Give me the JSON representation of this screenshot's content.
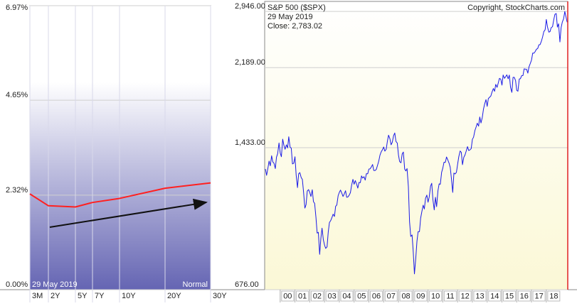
{
  "chart_data": [
    {
      "type": "line",
      "date_label": "29  May 2019",
      "annotation": "Normal",
      "categories": [
        "3M",
        "2Y",
        "5Y",
        "7Y",
        "10Y",
        "20Y",
        "30Y"
      ],
      "values": [
        2.35,
        2.06,
        2.03,
        2.14,
        2.24,
        2.49,
        2.62
      ],
      "color": "#ff2020",
      "ylim": [
        0,
        6.97
      ],
      "yticks": [
        {
          "value": 0,
          "label": "0.00%"
        },
        {
          "value": 2.32,
          "label": "2.32%"
        },
        {
          "value": 4.65,
          "label": "4.65%"
        },
        {
          "value": 6.97,
          "label": "6.97%"
        }
      ],
      "grid": true
    },
    {
      "type": "line",
      "title": "S&P 500 ($SPX)",
      "date_label": "29  May 2019",
      "close_label": "Close: 2,783.02",
      "copyright": "Copyright, StockCharts.com",
      "log_scale": true,
      "color": "#1a1ae6",
      "grid": true,
      "xlim": [
        1998.95,
        2019.45
      ],
      "xticks": [
        {
          "value": 2000,
          "label": "00"
        },
        {
          "value": 2001,
          "label": "01"
        },
        {
          "value": 2002,
          "label": "02"
        },
        {
          "value": 2003,
          "label": "03"
        },
        {
          "value": 2004,
          "label": "04"
        },
        {
          "value": 2005,
          "label": "05"
        },
        {
          "value": 2006,
          "label": "06"
        },
        {
          "value": 2007,
          "label": "07"
        },
        {
          "value": 2008,
          "label": "08"
        },
        {
          "value": 2009,
          "label": "09"
        },
        {
          "value": 2010,
          "label": "10"
        },
        {
          "value": 2011,
          "label": "11"
        },
        {
          "value": 2012,
          "label": "12"
        },
        {
          "value": 2013,
          "label": "13"
        },
        {
          "value": 2014,
          "label": "14"
        },
        {
          "value": 2015,
          "label": "15"
        },
        {
          "value": 2016,
          "label": "16"
        },
        {
          "value": 2017,
          "label": "17"
        },
        {
          "value": 2018,
          "label": "18"
        }
      ],
      "ylim": [
        676,
        3107
      ],
      "yticks": [
        {
          "value": 676,
          "label": "676.00"
        },
        {
          "value": 1433,
          "label": "1,433.00"
        },
        {
          "value": 2189,
          "label": "2,189.00"
        },
        {
          "value": 2946,
          "label": "2,946.00"
        }
      ],
      "x": [
        1999,
        1999.08,
        1999.17,
        1999.25,
        1999.33,
        1999.42,
        1999.5,
        1999.58,
        1999.67,
        1999.75,
        1999.83,
        1999.92,
        2000,
        2000.08,
        2000.17,
        2000.25,
        2000.33,
        2000.42,
        2000.5,
        2000.58,
        2000.67,
        2000.75,
        2000.83,
        2000.92,
        2001,
        2001.08,
        2001.17,
        2001.25,
        2001.33,
        2001.42,
        2001.5,
        2001.58,
        2001.67,
        2001.75,
        2001.83,
        2001.92,
        2002,
        2002.08,
        2002.17,
        2002.25,
        2002.33,
        2002.42,
        2002.5,
        2002.58,
        2002.67,
        2002.75,
        2002.83,
        2002.92,
        2003,
        2003.08,
        2003.17,
        2003.25,
        2003.33,
        2003.42,
        2003.5,
        2003.58,
        2003.67,
        2003.75,
        2003.83,
        2003.92,
        2004,
        2004.08,
        2004.17,
        2004.25,
        2004.33,
        2004.42,
        2004.5,
        2004.58,
        2004.67,
        2004.75,
        2004.83,
        2004.92,
        2005,
        2005.08,
        2005.17,
        2005.25,
        2005.33,
        2005.42,
        2005.5,
        2005.58,
        2005.67,
        2005.75,
        2005.83,
        2005.92,
        2006,
        2006.08,
        2006.17,
        2006.25,
        2006.33,
        2006.42,
        2006.5,
        2006.58,
        2006.67,
        2006.75,
        2006.83,
        2006.92,
        2007,
        2007.08,
        2007.17,
        2007.25,
        2007.33,
        2007.42,
        2007.5,
        2007.58,
        2007.67,
        2007.75,
        2007.83,
        2007.92,
        2008,
        2008.08,
        2008.17,
        2008.25,
        2008.33,
        2008.42,
        2008.5,
        2008.58,
        2008.67,
        2008.75,
        2008.83,
        2008.92,
        2009,
        2009.08,
        2009.17,
        2009.25,
        2009.33,
        2009.42,
        2009.5,
        2009.58,
        2009.67,
        2009.75,
        2009.83,
        2009.92,
        2010,
        2010.08,
        2010.17,
        2010.25,
        2010.33,
        2010.42,
        2010.5,
        2010.58,
        2010.67,
        2010.75,
        2010.83,
        2010.92,
        2011,
        2011.08,
        2011.17,
        2011.25,
        2011.33,
        2011.42,
        2011.5,
        2011.58,
        2011.67,
        2011.75,
        2011.83,
        2011.92,
        2012,
        2012.08,
        2012.17,
        2012.25,
        2012.33,
        2012.42,
        2012.5,
        2012.58,
        2012.67,
        2012.75,
        2012.83,
        2012.92,
        2013,
        2013.08,
        2013.17,
        2013.25,
        2013.33,
        2013.42,
        2013.5,
        2013.58,
        2013.67,
        2013.75,
        2013.83,
        2013.92,
        2014,
        2014.08,
        2014.17,
        2014.25,
        2014.33,
        2014.42,
        2014.5,
        2014.58,
        2014.67,
        2014.75,
        2014.83,
        2014.92,
        2015,
        2015.08,
        2015.17,
        2015.25,
        2015.33,
        2015.42,
        2015.5,
        2015.58,
        2015.67,
        2015.75,
        2015.83,
        2015.92,
        2016,
        2016.08,
        2016.17,
        2016.25,
        2016.33,
        2016.42,
        2016.5,
        2016.58,
        2016.67,
        2016.75,
        2016.83,
        2016.92,
        2017,
        2017.08,
        2017.17,
        2017.25,
        2017.33,
        2017.42,
        2017.5,
        2017.58,
        2017.67,
        2017.75,
        2017.83,
        2017.92,
        2018,
        2018.08,
        2018.17,
        2018.25,
        2018.33,
        2018.42,
        2018.5,
        2018.58,
        2018.67,
        2018.75,
        2018.83,
        2018.92,
        2019,
        2019.08,
        2019.17,
        2019.25,
        2019.41
      ],
      "values": [
        1280,
        1238,
        1286,
        1335,
        1302,
        1373,
        1329,
        1320,
        1283,
        1363,
        1389,
        1469,
        1394,
        1366,
        1499,
        1452,
        1421,
        1455,
        1431,
        1518,
        1437,
        1429,
        1315,
        1320,
        1366,
        1240,
        1160,
        1249,
        1256,
        1224,
        1211,
        1134,
        1041,
        1060,
        1139,
        1148,
        1130,
        1107,
        1147,
        1077,
        1067,
        990,
        912,
        916,
        815,
        886,
        936,
        880,
        856,
        841,
        848,
        917,
        964,
        975,
        990,
        1008,
        996,
        1051,
        1058,
        1112,
        1131,
        1145,
        1126,
        1107,
        1121,
        1141,
        1102,
        1104,
        1115,
        1130,
        1174,
        1212,
        1181,
        1204,
        1181,
        1157,
        1192,
        1191,
        1234,
        1220,
        1229,
        1207,
        1249,
        1248,
        1280,
        1281,
        1295,
        1311,
        1270,
        1270,
        1277,
        1304,
        1336,
        1378,
        1401,
        1418,
        1438,
        1407,
        1421,
        1482,
        1531,
        1503,
        1455,
        1474,
        1527,
        1549,
        1481,
        1468,
        1379,
        1331,
        1323,
        1386,
        1400,
        1280,
        1267,
        1283,
        1166,
        969,
        896,
        903,
        826,
        735,
        798,
        873,
        919,
        919,
        987,
        1021,
        1057,
        1036,
        1096,
        1115,
        1074,
        1104,
        1169,
        1187,
        1089,
        1031,
        1102,
        1049,
        1141,
        1183,
        1181,
        1258,
        1286,
        1327,
        1326,
        1364,
        1345,
        1321,
        1292,
        1219,
        1131,
        1253,
        1247,
        1258,
        1312,
        1366,
        1408,
        1398,
        1310,
        1362,
        1379,
        1407,
        1441,
        1412,
        1416,
        1426,
        1498,
        1515,
        1569,
        1598,
        1631,
        1606,
        1686,
        1633,
        1682,
        1757,
        1806,
        1848,
        1783,
        1859,
        1872,
        1884,
        1924,
        1960,
        1931,
        2003,
        1972,
        2018,
        2068,
        2059,
        1995,
        2105,
        2068,
        2086,
        2107,
        2063,
        2104,
        1972,
        1920,
        2079,
        2080,
        2044,
        1940,
        1932,
        2060,
        2065,
        2097,
        2099,
        2174,
        2171,
        2168,
        2126,
        2199,
        2239,
        2279,
        2364,
        2363,
        2384,
        2412,
        2423,
        2470,
        2472,
        2519,
        2575,
        2648,
        2674,
        2824,
        2714,
        2641,
        2648,
        2705,
        2718,
        2816,
        2902,
        2914,
        2712,
        2760,
        2507,
        2704,
        2784,
        2834,
        2946,
        2783.02
      ]
    }
  ]
}
